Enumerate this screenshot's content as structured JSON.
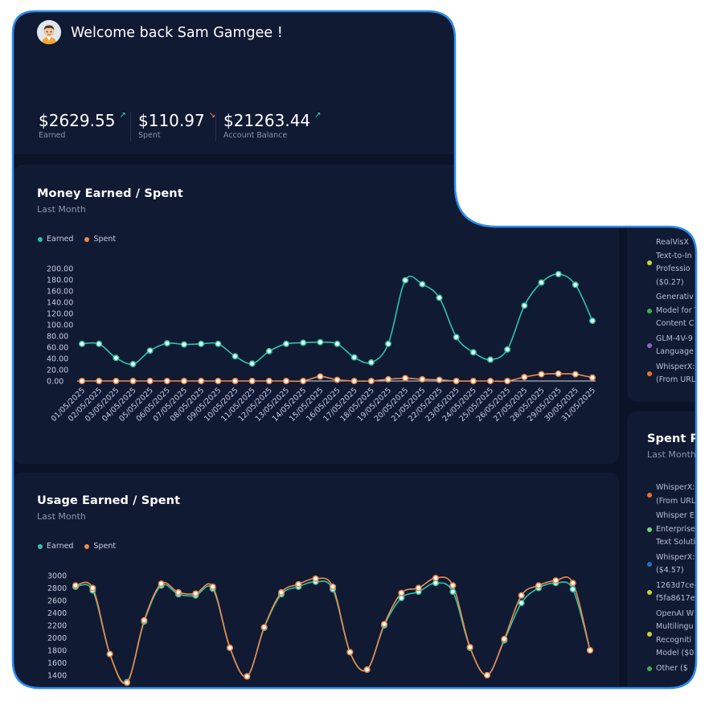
{
  "header": {
    "welcome": "Welcome back Sam Gamgee !",
    "stats": [
      {
        "value": "$2629.55",
        "label": "Earned",
        "trend": "up",
        "arrow": "↗",
        "color": "#3ecfb9"
      },
      {
        "value": "$110.97",
        "label": "Spent",
        "trend": "down",
        "arrow": "↘",
        "color": "#f08a4b"
      },
      {
        "value": "$21263.44",
        "label": "Account Balance",
        "trend": "up",
        "arrow": "↗",
        "color": "#3ecfb9"
      }
    ]
  },
  "colors": {
    "earned": "#2ec4a8",
    "spent": "#f08a4b",
    "accent_border": "#2d8cf0"
  },
  "money_card": {
    "title": "Money Earned / Spent",
    "subtitle": "Last Month",
    "legend": [
      "Earned",
      "Spent"
    ]
  },
  "usage_card": {
    "title": "Usage Earned / Spent",
    "subtitle": "Last Month",
    "legend": [
      "Earned",
      "Spent"
    ]
  },
  "side_top": {
    "items": [
      {
        "text": [
          "RealVisX",
          "Text-to-In",
          "Professio",
          "($0.27)"
        ],
        "color": "#c5d62c"
      },
      {
        "text": [
          "Generativ",
          "Model for T",
          "Content C"
        ],
        "color": "#3fae54"
      },
      {
        "text": [
          "GLM-4V-9",
          "Language"
        ],
        "color": "#8a66c9"
      },
      {
        "text": [
          "WhisperX:",
          "(From URL"
        ],
        "color": "#f0702a"
      }
    ]
  },
  "side_bottom": {
    "title": "Spent Pe",
    "subtitle": "Last Month",
    "items": [
      {
        "text": [
          "WhisperX:",
          "(From URL"
        ],
        "color": "#f0702a"
      },
      {
        "text": [
          "Whisper E",
          "Enterprise",
          "Text Soluti"
        ],
        "color": "#6fd47d"
      },
      {
        "text": [
          "WhisperX:",
          "($4.57)"
        ],
        "color": "#2b6cb8"
      },
      {
        "text": [
          "1263d7ce-",
          "f5fa8617e"
        ],
        "color": "#c5d62c"
      },
      {
        "text": [
          "OpenAI W",
          "Multilingu",
          "Recogniti",
          "Model ($0"
        ],
        "color": "#c5d62c"
      },
      {
        "text": [
          "Other ($"
        ],
        "color": "#3fae54"
      }
    ]
  },
  "chart_data": [
    {
      "type": "line",
      "title": "Money Earned / Spent",
      "subtitle": "Last Month",
      "ylim": [
        0,
        200
      ],
      "yticks": [
        "200.00",
        "180.00",
        "160.00",
        "140.00",
        "120.00",
        "100.00",
        "80.00",
        "60.00",
        "40.00",
        "20.00",
        "0.00"
      ],
      "x": [
        "01/05/2025",
        "02/05/2025",
        "03/05/2025",
        "04/05/2025",
        "05/05/2025",
        "06/05/2025",
        "07/05/2025",
        "08/05/2025",
        "09/05/2025",
        "10/05/2025",
        "11/05/2025",
        "12/05/2025",
        "13/05/2025",
        "14/05/2025",
        "15/05/2025",
        "16/05/2025",
        "17/05/2025",
        "18/05/2025",
        "19/05/2025",
        "20/05/2025",
        "21/05/2025",
        "22/05/2025",
        "23/05/2025",
        "24/05/2025",
        "25/05/2025",
        "26/05/2025",
        "27/05/2025",
        "28/05/2025",
        "29/05/2025",
        "30/05/2025",
        "31/05/2025"
      ],
      "series": [
        {
          "name": "Earned",
          "values": [
            66,
            66,
            41,
            30,
            54,
            67,
            65,
            66,
            66,
            44,
            31,
            53,
            66,
            68,
            69,
            66,
            42,
            33,
            66,
            179,
            172,
            148,
            78,
            51,
            38,
            56,
            134,
            175,
            190,
            171,
            107
          ]
        },
        {
          "name": "Spent",
          "values": [
            0,
            0,
            0,
            0,
            0,
            0,
            0,
            0,
            0,
            0,
            0,
            0,
            0,
            0,
            8,
            2,
            0,
            0,
            3,
            5,
            3,
            2,
            0,
            0,
            0,
            0,
            7,
            12,
            13,
            12,
            6
          ]
        }
      ],
      "legend": "top-left",
      "grid": false
    },
    {
      "type": "line",
      "title": "Usage Earned / Spent",
      "subtitle": "Last Month",
      "ylim": [
        1400,
        3000
      ],
      "yticks": [
        "3000",
        "2800",
        "2600",
        "2400",
        "2200",
        "2000",
        "1800",
        "1600",
        "1400"
      ],
      "series": [
        {
          "name": "Earned",
          "values": [
            2820,
            2760,
            1740,
            1290,
            2260,
            2840,
            2700,
            2680,
            2790,
            1840,
            1380,
            2160,
            2700,
            2820,
            2900,
            2780,
            1770,
            1490,
            2200,
            2640,
            2740,
            2880,
            2740,
            1840,
            1400,
            1960,
            2560,
            2800,
            2880,
            2780,
            1800
          ]
        },
        {
          "name": "Spent",
          "values": [
            2840,
            2800,
            1740,
            1280,
            2280,
            2870,
            2730,
            2710,
            2820,
            1840,
            1380,
            2170,
            2730,
            2860,
            2950,
            2820,
            1770,
            1490,
            2220,
            2720,
            2800,
            2960,
            2840,
            1850,
            1400,
            1980,
            2680,
            2840,
            2920,
            2880,
            1800
          ]
        }
      ],
      "legend": "top-left",
      "grid": false
    }
  ]
}
